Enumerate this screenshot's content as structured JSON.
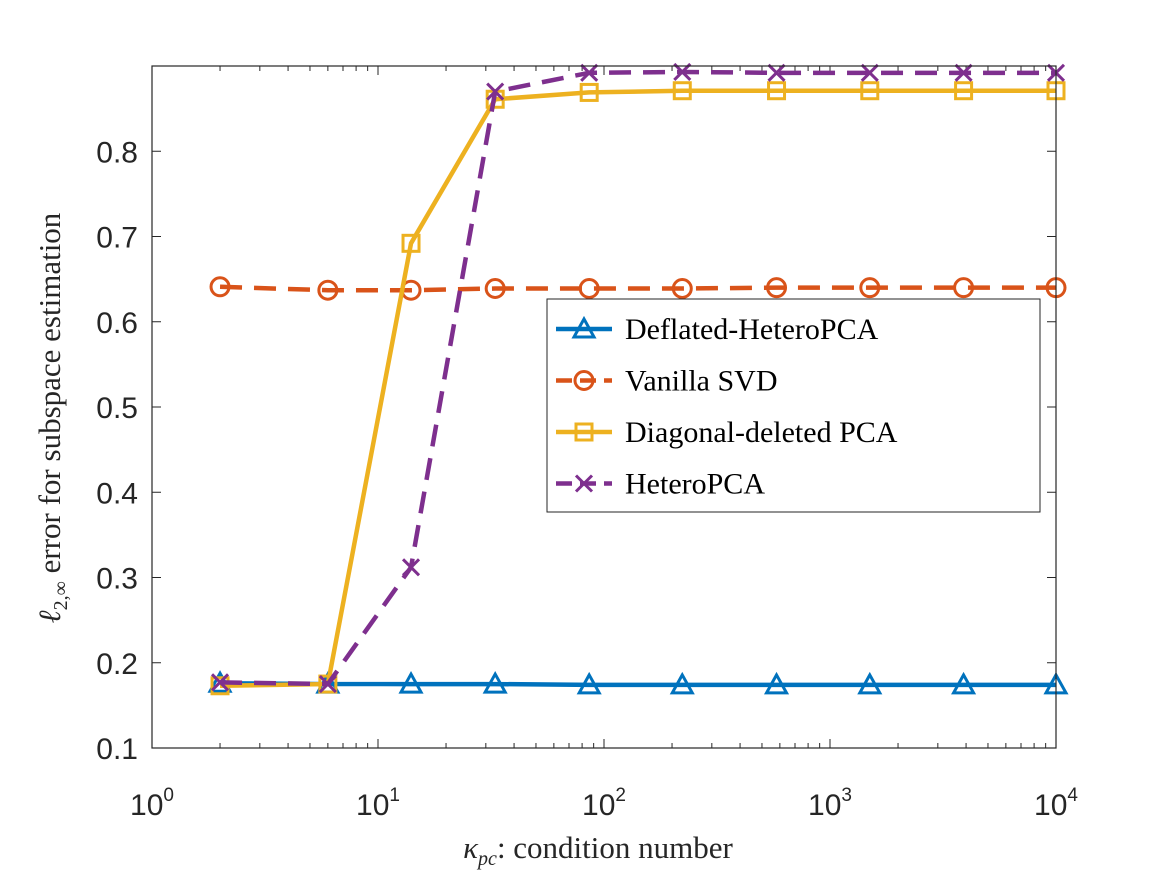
{
  "chart_data": {
    "type": "line",
    "xscale": "log",
    "xlim": [
      1,
      10000
    ],
    "ylim": [
      0.1,
      0.9
    ],
    "xticks": [
      {
        "base": "10",
        "exp": "0"
      },
      {
        "base": "10",
        "exp": "1"
      },
      {
        "base": "10",
        "exp": "2"
      },
      {
        "base": "10",
        "exp": "3"
      },
      {
        "base": "10",
        "exp": "4"
      }
    ],
    "yticks": [
      "0.1",
      "0.2",
      "0.3",
      "0.4",
      "0.5",
      "0.6",
      "0.7",
      "0.8"
    ],
    "xlabel": {
      "sym": "κ",
      "sub": "pc",
      "rest": ": condition number"
    },
    "ylabel": {
      "sym": "ℓ",
      "sub": "2,∞",
      "rest": " error for subspace estimation"
    },
    "x": [
      2,
      6,
      14,
      33,
      86,
      222,
      580,
      1500,
      3900,
      10000
    ],
    "series": [
      {
        "name": "Deflated-HeteroPCA",
        "color": "#0072BD",
        "dash": "solid",
        "marker": "triangle",
        "values": [
          0.176,
          0.175,
          0.175,
          0.175,
          0.174,
          0.174,
          0.174,
          0.174,
          0.174,
          0.174
        ]
      },
      {
        "name": "Vanilla SVD",
        "color": "#D95319",
        "dash": "dashed",
        "marker": "circle",
        "values": [
          0.641,
          0.637,
          0.637,
          0.639,
          0.639,
          0.639,
          0.64,
          0.64,
          0.64,
          0.64
        ]
      },
      {
        "name": "Diagonal-deleted PCA",
        "color": "#EDB120",
        "dash": "solid",
        "marker": "square",
        "values": [
          0.173,
          0.175,
          0.692,
          0.861,
          0.869,
          0.871,
          0.871,
          0.871,
          0.871,
          0.871
        ]
      },
      {
        "name": "HeteroPCA",
        "color": "#7E2F8E",
        "dash": "dashed",
        "marker": "x",
        "values": [
          0.177,
          0.175,
          0.312,
          0.87,
          0.892,
          0.893,
          0.892,
          0.892,
          0.892,
          0.892
        ]
      }
    ]
  }
}
